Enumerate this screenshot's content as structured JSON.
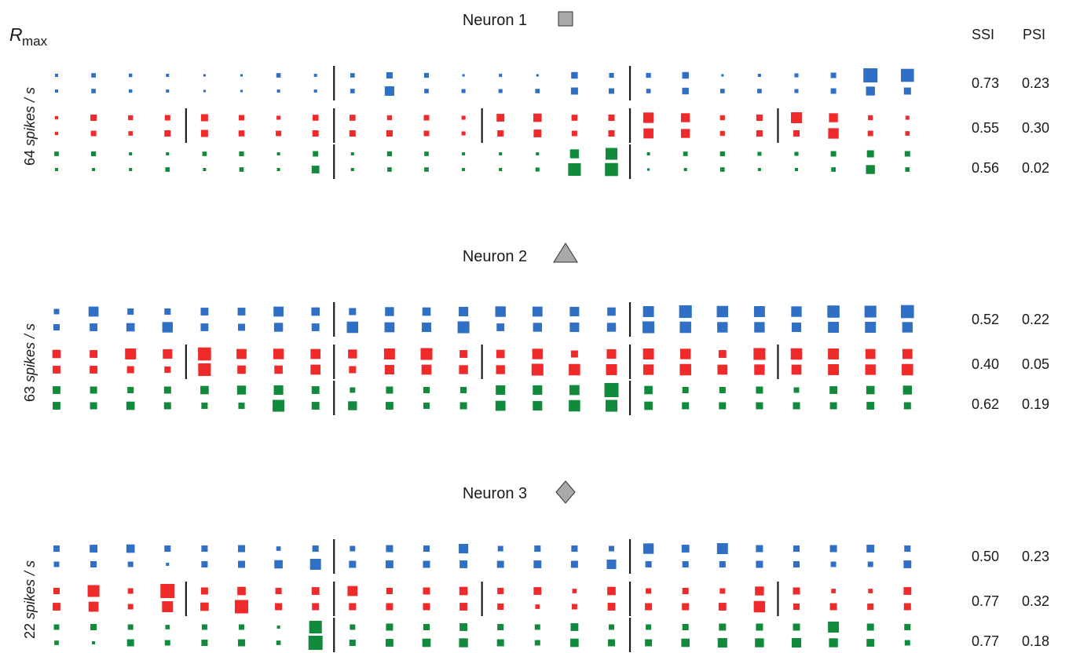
{
  "header": {
    "rmax_symbol": "R",
    "rmax_subscript": "max",
    "col_ssi": "SSI",
    "col_psi": "PSI"
  },
  "colors": {
    "blue": "#2f6fc4",
    "red": "#ee2a2a",
    "green": "#118a3c",
    "marker_fill": "#a9a9ab",
    "marker_stroke": "#333333",
    "separator": "#1a1a1a"
  },
  "chart_data": {
    "type": "heatmap",
    "encoding": "square area proportional to firing rate",
    "neurons": [
      {
        "title": "Neuron 1",
        "marker": "square",
        "rmax_label": "64 spikes / s",
        "rmax_value": "64",
        "rmax_unit": "spikes / s",
        "rows": [
          {
            "color": "blue",
            "ssi": "0.73",
            "psi": "0.23",
            "separators_after": [
              8,
              16
            ],
            "top": [
              0.05,
              0.1,
              0.06,
              0.05,
              0.03,
              0.03,
              0.1,
              0.05,
              0.1,
              0.2,
              0.12,
              0.03,
              0.05,
              0.03,
              0.22,
              0.12,
              0.12,
              0.22,
              0.03,
              0.05,
              0.08,
              0.15,
              1.0,
              0.85
            ],
            "bottom": [
              0.05,
              0.1,
              0.06,
              0.05,
              0.03,
              0.03,
              0.05,
              0.05,
              0.1,
              0.45,
              0.1,
              0.08,
              0.08,
              0.1,
              0.25,
              0.15,
              0.1,
              0.22,
              0.1,
              0.1,
              0.08,
              0.15,
              0.4,
              0.25
            ]
          },
          {
            "color": "red",
            "ssi": "0.55",
            "psi": "0.30",
            "separators_after": [
              4,
              8,
              12,
              16,
              20
            ],
            "top": [
              0.06,
              0.2,
              0.12,
              0.15,
              0.25,
              0.15,
              0.08,
              0.18,
              0.18,
              0.12,
              0.15,
              0.08,
              0.3,
              0.35,
              0.18,
              0.2,
              0.55,
              0.4,
              0.12,
              0.2,
              0.6,
              0.4,
              0.12,
              0.08
            ],
            "bottom": [
              0.06,
              0.15,
              0.1,
              0.2,
              0.25,
              0.18,
              0.15,
              0.2,
              0.2,
              0.2,
              0.15,
              0.08,
              0.2,
              0.3,
              0.15,
              0.2,
              0.5,
              0.4,
              0.12,
              0.2,
              0.2,
              0.55,
              0.15,
              0.1
            ]
          },
          {
            "color": "green",
            "ssi": "0.56",
            "psi": "0.02",
            "separators_after": [
              8,
              16
            ],
            "top": [
              0.1,
              0.12,
              0.05,
              0.05,
              0.1,
              0.12,
              0.05,
              0.15,
              0.05,
              0.12,
              0.1,
              0.05,
              0.05,
              0.05,
              0.4,
              0.7,
              0.05,
              0.1,
              0.12,
              0.08,
              0.08,
              0.15,
              0.25,
              0.15
            ],
            "bottom": [
              0.05,
              0.05,
              0.05,
              0.1,
              0.05,
              0.1,
              0.05,
              0.3,
              0.05,
              0.1,
              0.1,
              0.05,
              0.05,
              0.08,
              0.8,
              0.85,
              0.03,
              0.05,
              0.1,
              0.05,
              0.05,
              0.1,
              0.4,
              0.1
            ]
          }
        ]
      },
      {
        "title": "Neuron 2",
        "marker": "triangle",
        "rmax_label": "63 spikes / s",
        "rmax_value": "63",
        "rmax_unit": "spikes / s",
        "rows": [
          {
            "color": "blue",
            "ssi": "0.52",
            "psi": "0.22",
            "separators_after": [
              8,
              16
            ],
            "top": [
              0.15,
              0.5,
              0.2,
              0.2,
              0.3,
              0.3,
              0.5,
              0.35,
              0.25,
              0.4,
              0.35,
              0.45,
              0.55,
              0.5,
              0.45,
              0.35,
              0.6,
              0.8,
              0.65,
              0.6,
              0.55,
              0.75,
              0.7,
              0.85
            ],
            "bottom": [
              0.2,
              0.3,
              0.35,
              0.55,
              0.3,
              0.25,
              0.4,
              0.3,
              0.65,
              0.5,
              0.45,
              0.7,
              0.3,
              0.4,
              0.45,
              0.4,
              0.7,
              0.65,
              0.55,
              0.55,
              0.45,
              0.6,
              0.6,
              0.55
            ]
          },
          {
            "color": "red",
            "ssi": "0.40",
            "psi": "0.05",
            "separators_after": [
              4,
              8,
              12,
              16,
              20
            ],
            "top": [
              0.35,
              0.3,
              0.6,
              0.45,
              0.85,
              0.5,
              0.55,
              0.5,
              0.4,
              0.6,
              0.7,
              0.3,
              0.35,
              0.55,
              0.25,
              0.45,
              0.6,
              0.55,
              0.3,
              0.7,
              0.65,
              0.6,
              0.5,
              0.5
            ],
            "bottom": [
              0.3,
              0.3,
              0.25,
              0.2,
              0.8,
              0.35,
              0.35,
              0.5,
              0.25,
              0.45,
              0.5,
              0.4,
              0.4,
              0.7,
              0.65,
              0.6,
              0.55,
              0.65,
              0.5,
              0.55,
              0.5,
              0.6,
              0.55,
              0.65
            ]
          },
          {
            "color": "green",
            "ssi": "0.62",
            "psi": "0.19",
            "separators_after": [
              8,
              16
            ],
            "top": [
              0.3,
              0.25,
              0.2,
              0.25,
              0.35,
              0.4,
              0.45,
              0.3,
              0.15,
              0.25,
              0.2,
              0.2,
              0.45,
              0.45,
              0.5,
              1.0,
              0.35,
              0.2,
              0.2,
              0.25,
              0.15,
              0.3,
              0.35,
              0.4
            ],
            "bottom": [
              0.3,
              0.25,
              0.35,
              0.25,
              0.2,
              0.2,
              0.7,
              0.3,
              0.4,
              0.3,
              0.2,
              0.25,
              0.5,
              0.45,
              0.65,
              0.7,
              0.35,
              0.25,
              0.25,
              0.25,
              0.25,
              0.25,
              0.3,
              0.25
            ]
          }
        ]
      },
      {
        "title": "Neuron 3",
        "marker": "diamond",
        "rmax_label": "22 spikes / s",
        "rmax_value": "22",
        "rmax_unit": "spikes / s",
        "rows": [
          {
            "color": "blue",
            "ssi": "0.50",
            "psi": "0.23",
            "separators_after": [
              8,
              16
            ],
            "top": [
              0.2,
              0.3,
              0.35,
              0.2,
              0.2,
              0.25,
              0.1,
              0.2,
              0.15,
              0.25,
              0.2,
              0.45,
              0.15,
              0.2,
              0.2,
              0.15,
              0.55,
              0.3,
              0.6,
              0.25,
              0.2,
              0.25,
              0.3,
              0.2
            ],
            "bottom": [
              0.15,
              0.2,
              0.15,
              0.05,
              0.2,
              0.25,
              0.35,
              0.6,
              0.25,
              0.3,
              0.25,
              0.3,
              0.25,
              0.3,
              0.25,
              0.45,
              0.2,
              0.2,
              0.2,
              0.25,
              0.2,
              0.15,
              0.15,
              0.3
            ]
          },
          {
            "color": "red",
            "ssi": "0.77",
            "psi": "0.32",
            "separators_after": [
              4,
              8,
              12,
              16,
              20
            ],
            "top": [
              0.2,
              0.7,
              0.15,
              1.0,
              0.25,
              0.35,
              0.2,
              0.3,
              0.5,
              0.2,
              0.25,
              0.35,
              0.2,
              0.3,
              0.1,
              0.35,
              0.15,
              0.2,
              0.15,
              0.4,
              0.25,
              0.1,
              0.1,
              0.3
            ],
            "bottom": [
              0.3,
              0.5,
              0.15,
              0.6,
              0.35,
              0.9,
              0.25,
              0.25,
              0.25,
              0.25,
              0.25,
              0.3,
              0.2,
              0.1,
              0.15,
              0.3,
              0.25,
              0.25,
              0.3,
              0.65,
              0.2,
              0.25,
              0.2,
              0.25
            ]
          },
          {
            "color": "green",
            "ssi": "0.77",
            "psi": "0.18",
            "separators_after": [
              8,
              16
            ],
            "top": [
              0.15,
              0.2,
              0.15,
              0.1,
              0.15,
              0.15,
              0.05,
              0.8,
              0.15,
              0.25,
              0.2,
              0.3,
              0.2,
              0.15,
              0.3,
              0.15,
              0.15,
              0.2,
              0.25,
              0.25,
              0.25,
              0.6,
              0.25,
              0.2
            ],
            "bottom": [
              0.1,
              0.05,
              0.25,
              0.15,
              0.2,
              0.25,
              0.1,
              1.0,
              0.2,
              0.3,
              0.35,
              0.4,
              0.25,
              0.15,
              0.35,
              0.25,
              0.25,
              0.35,
              0.45,
              0.4,
              0.45,
              0.4,
              0.3,
              0.15
            ]
          }
        ]
      }
    ]
  }
}
